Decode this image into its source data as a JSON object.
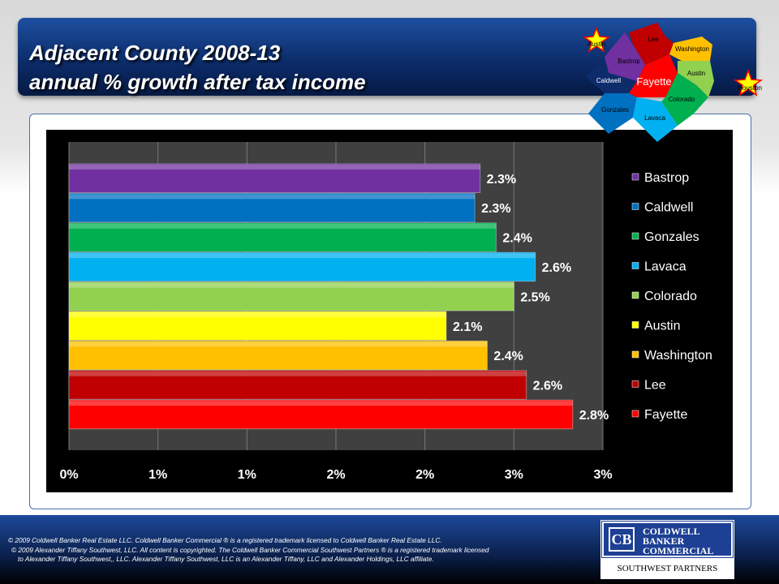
{
  "header": {
    "title_line1": "Adjacent County 2008-13",
    "title_line2": "annual % growth after tax income"
  },
  "map": {
    "labels": [
      "Lee",
      "Washington",
      "Bastrop",
      "Austin",
      "Caldwell",
      "Fayette",
      "Colorado",
      "Gonzales",
      "Lavaca"
    ],
    "star_austin": "Austin",
    "star_houston": "Houston"
  },
  "chart_data": {
    "type": "bar",
    "orientation": "horizontal",
    "categories": [
      "Bastrop",
      "Caldwell",
      "Gonzales",
      "Lavaca",
      "Colorado",
      "Austin",
      "Washington",
      "Lee",
      "Fayette"
    ],
    "values": [
      2.31,
      2.28,
      2.4,
      2.62,
      2.5,
      2.12,
      2.35,
      2.57,
      2.83
    ],
    "data_labels": [
      "2.3%",
      "2.3%",
      "2.4%",
      "2.6%",
      "2.5%",
      "2.1%",
      "2.4%",
      "2.6%",
      "2.8%"
    ],
    "colors": [
      "#7030a0",
      "#0070c0",
      "#00b050",
      "#00b0f0",
      "#92d050",
      "#ffff00",
      "#ffc000",
      "#c00000",
      "#ff0000"
    ],
    "xlim": [
      0,
      3
    ],
    "xticks": [
      0,
      0.5,
      1,
      1.5,
      2,
      2.5,
      3
    ],
    "xtick_labels": [
      "0%",
      "1%",
      "1%",
      "2%",
      "2%",
      "3%",
      "3%"
    ],
    "legend": [
      "Bastrop",
      "Caldwell",
      "Gonzales",
      "Lavaca",
      "Colorado",
      "Austin",
      "Washington",
      "Lee",
      "Fayette"
    ],
    "legend_position": "right",
    "grid": true,
    "title": "",
    "xlabel": "",
    "ylabel": ""
  },
  "footer": {
    "line1": "©  2009 Coldwell Banker Real Estate  LLC. Coldwell Banker Commercial ® is a registered trademark licensed to Coldwell Banker Real Estate LLC.",
    "line2": "© 2009  Alexander Tiffany Southwest,  LLC. All content is copyrighted. The Coldwell Banker Commercial Southwest Partners ® is a registered trademark licensed",
    "line3": "to Alexander Tiffany Southwest,, LLC.  Alexander Tiffany Southwest, LLC is an Alexander Tiffany, LLC and Alexander Holdings, LLC affiliate.",
    "logo": {
      "mark": "CB",
      "line1": "COLDWELL",
      "line2": "BANKER",
      "line3": "COMMERCIAL",
      "sub": "SOUTHWEST PARTNERS"
    }
  }
}
